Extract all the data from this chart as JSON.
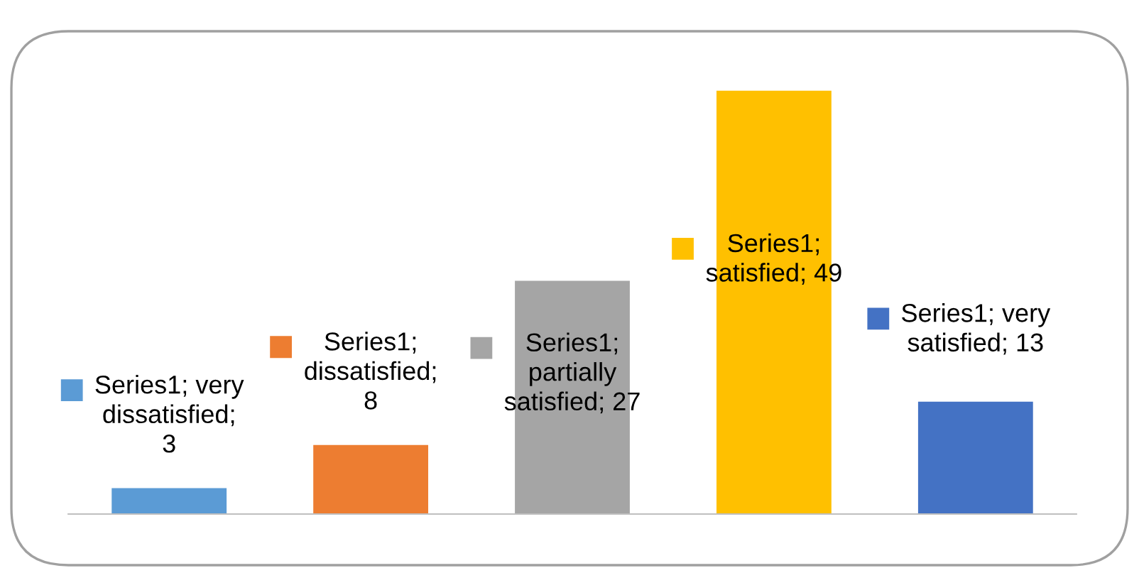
{
  "chart_data": {
    "type": "bar",
    "categories": [
      null,
      null,
      null,
      null,
      null
    ],
    "values": [
      3,
      8,
      27,
      49,
      13
    ],
    "colors": [
      "#5b9bd5",
      "#ed7d31",
      "#a5a5a5",
      "#ffc000",
      "#4472c4"
    ],
    "value_labels": [
      "Series1; very\ndissatisfied;\n3",
      "Series1;\ndissatisfied;\n8",
      "Series1;\npartially\nsatisfied; 27",
      "Series1;\nsatisfied; 49",
      "Series1; very\nsatisfied; 13"
    ],
    "grid": false,
    "legend": false
  }
}
